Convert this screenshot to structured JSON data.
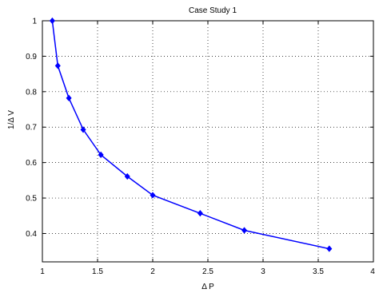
{
  "chart_data": {
    "type": "line",
    "title": "Case Study 1",
    "xlabel": "Δ P",
    "ylabel": "1/Δ V",
    "xlim": [
      1,
      4
    ],
    "ylim": [
      0.32,
      1.0
    ],
    "x_ticks": [
      1,
      1.5,
      2,
      2.5,
      3,
      3.5,
      4
    ],
    "x_tick_labels": [
      "1",
      "1.5",
      "2",
      "2.5",
      "3",
      "3.5",
      "4"
    ],
    "y_ticks": [
      0.4,
      0.5,
      0.6,
      0.7,
      0.8,
      0.9,
      1
    ],
    "y_tick_labels": [
      "0.4",
      "0.5",
      "0.6",
      "0.7",
      "0.8",
      "0.9",
      "1"
    ],
    "grid": true,
    "series": [
      {
        "color": "#0000ff",
        "marker": "diamond",
        "x": [
          1.09,
          1.14,
          1.24,
          1.37,
          1.53,
          1.77,
          2.0,
          2.43,
          2.83,
          3.6
        ],
        "y": [
          1.0,
          0.873,
          0.782,
          0.693,
          0.622,
          0.561,
          0.508,
          0.457,
          0.409,
          0.357
        ]
      }
    ]
  }
}
